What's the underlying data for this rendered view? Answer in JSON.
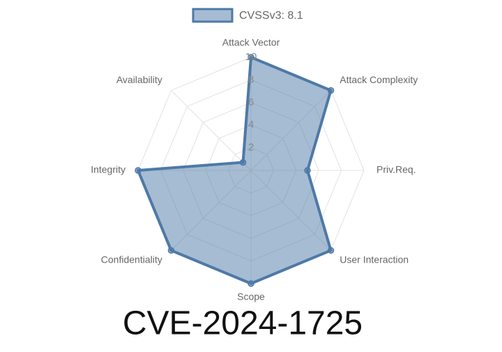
{
  "chart_data": {
    "type": "radar",
    "title": "CVE-2024-1725",
    "categories": [
      "Attack Vector",
      "Attack Complexity",
      "Priv.Req.",
      "User Interaction",
      "Scope",
      "Confidentiality",
      "Integrity",
      "Availability"
    ],
    "series": [
      {
        "name": "CVSSv3: 8.1",
        "color": "#4e79a7",
        "values": [
          10,
          10,
          5,
          10,
          10,
          10,
          10,
          1
        ]
      }
    ],
    "rlim": [
      0,
      10
    ],
    "rticks": [
      2,
      4,
      6,
      8,
      10
    ],
    "grid": true
  }
}
